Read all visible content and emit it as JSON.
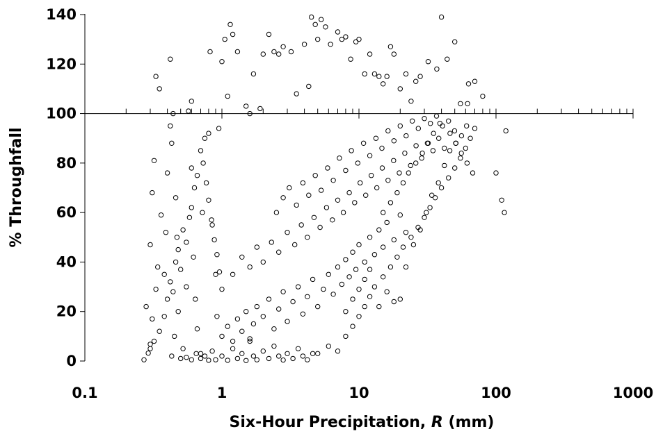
{
  "chart_data": {
    "type": "scatter",
    "title": "",
    "xlabel_prefix": "Six-Hour Precipitation,",
    "xlabel_var": "R",
    "xlabel_unit": "(mm)",
    "ylabel": "% Throughfall",
    "x_scale": "log",
    "xlim": [
      0.1,
      1000
    ],
    "ylim": [
      0,
      140
    ],
    "x_ticks": [
      0.1,
      1,
      10,
      100,
      1000
    ],
    "x_tick_labels": [
      "0.1",
      "1",
      "10",
      "100",
      "1000"
    ],
    "y_ticks": [
      0,
      20,
      40,
      60,
      80,
      100,
      120,
      140
    ],
    "y_tick_labels": [
      "0",
      "20",
      "40",
      "60",
      "80",
      "100",
      "120",
      "140"
    ],
    "reference_line_y": 100,
    "grid": false,
    "legend": "none",
    "marker": "open-circle",
    "series": [
      {
        "points": [
          [
            0.27,
            0.5
          ],
          [
            0.29,
            3.2
          ],
          [
            0.3,
            6.8
          ],
          [
            0.28,
            22
          ],
          [
            0.3,
            47
          ],
          [
            0.31,
            68
          ],
          [
            0.32,
            81
          ],
          [
            0.33,
            115
          ],
          [
            0.35,
            110
          ],
          [
            0.31,
            17
          ],
          [
            0.33,
            29
          ],
          [
            0.34,
            38
          ],
          [
            0.36,
            59
          ],
          [
            0.38,
            35
          ],
          [
            0.39,
            52
          ],
          [
            0.4,
            76
          ],
          [
            0.42,
            95
          ],
          [
            0.42,
            122
          ],
          [
            0.43,
            88
          ],
          [
            0.44,
            100
          ],
          [
            0.46,
            66
          ],
          [
            0.47,
            50
          ],
          [
            0.48,
            20
          ],
          [
            0.45,
            10
          ],
          [
            0.43,
            2
          ],
          [
            0.5,
            1
          ],
          [
            0.52,
            5
          ],
          [
            0.55,
            30
          ],
          [
            0.57,
            101
          ],
          [
            0.6,
            105
          ],
          [
            0.6,
            78
          ],
          [
            0.62,
            42
          ],
          [
            0.64,
            25
          ],
          [
            0.66,
            13
          ],
          [
            0.7,
            3
          ],
          [
            0.72,
            60
          ],
          [
            0.75,
            90
          ],
          [
            0.8,
            92
          ],
          [
            0.82,
            125
          ],
          [
            0.85,
            55
          ],
          [
            0.9,
            35
          ],
          [
            0.92,
            18
          ],
          [
            0.95,
            94
          ],
          [
            1.0,
            121
          ],
          [
            1.05,
            130
          ],
          [
            1.1,
            107
          ],
          [
            1.15,
            136
          ],
          [
            1.2,
            132
          ],
          [
            1.3,
            125
          ],
          [
            1.5,
            103
          ],
          [
            1.6,
            100
          ],
          [
            1.7,
            116
          ],
          [
            1.9,
            102
          ],
          [
            2.0,
            124
          ],
          [
            2.2,
            132
          ],
          [
            2.4,
            125
          ],
          [
            2.6,
            124
          ],
          [
            2.8,
            127
          ],
          [
            3.2,
            125
          ],
          [
            3.5,
            108
          ],
          [
            4.0,
            128
          ],
          [
            4.3,
            111
          ],
          [
            4.5,
            139
          ],
          [
            4.8,
            136
          ],
          [
            5.0,
            130
          ],
          [
            5.3,
            138
          ],
          [
            5.7,
            135
          ],
          [
            6.2,
            128
          ],
          [
            7.0,
            133
          ],
          [
            7.5,
            130
          ],
          [
            8.0,
            131
          ],
          [
            8.7,
            122
          ],
          [
            9.5,
            129
          ],
          [
            10,
            130
          ],
          [
            11,
            116
          ],
          [
            12,
            124
          ],
          [
            13,
            116
          ],
          [
            14,
            115
          ],
          [
            15,
            112
          ],
          [
            16,
            115
          ],
          [
            17,
            127
          ],
          [
            18,
            124
          ],
          [
            20,
            110
          ],
          [
            22,
            116
          ],
          [
            24,
            105
          ],
          [
            26,
            113
          ],
          [
            28,
            115
          ],
          [
            32,
            121
          ],
          [
            37,
            118
          ],
          [
            40,
            139
          ],
          [
            44,
            122
          ],
          [
            50,
            129
          ],
          [
            55,
            104
          ],
          [
            62,
            104
          ],
          [
            63,
            112
          ],
          [
            70,
            113
          ],
          [
            80,
            107
          ],
          [
            100,
            76
          ],
          [
            110,
            65
          ],
          [
            115,
            60
          ],
          [
            118,
            93
          ],
          [
            0.9,
            0.5
          ],
          [
            1.0,
            2
          ],
          [
            1.1,
            0.3
          ],
          [
            1.2,
            5
          ],
          [
            1.3,
            1
          ],
          [
            1.4,
            3
          ],
          [
            1.5,
            0.2
          ],
          [
            1.6,
            8
          ],
          [
            1.7,
            2
          ],
          [
            1.8,
            0.5
          ],
          [
            2.0,
            4
          ],
          [
            2.2,
            1
          ],
          [
            2.4,
            6
          ],
          [
            2.6,
            2
          ],
          [
            2.8,
            0.4
          ],
          [
            3.0,
            3
          ],
          [
            3.3,
            1
          ],
          [
            3.6,
            5
          ],
          [
            3.9,
            2
          ],
          [
            4.2,
            0.5
          ],
          [
            4.6,
            3
          ],
          [
            0.7,
            1
          ],
          [
            0.75,
            2
          ],
          [
            0.8,
            0.3
          ],
          [
            0.85,
            4
          ],
          [
            0.6,
            0.5
          ],
          [
            0.65,
            3
          ],
          [
            0.55,
            1.5
          ],
          [
            1.0,
            10
          ],
          [
            1.1,
            14
          ],
          [
            1.2,
            8
          ],
          [
            1.3,
            17
          ],
          [
            1.4,
            12
          ],
          [
            1.5,
            20
          ],
          [
            1.6,
            9
          ],
          [
            1.7,
            15
          ],
          [
            1.8,
            22
          ],
          [
            2.0,
            18
          ],
          [
            2.2,
            25
          ],
          [
            2.4,
            13
          ],
          [
            2.6,
            21
          ],
          [
            2.8,
            28
          ],
          [
            3.0,
            16
          ],
          [
            3.3,
            24
          ],
          [
            3.6,
            30
          ],
          [
            3.9,
            19
          ],
          [
            4.2,
            26
          ],
          [
            4.6,
            33
          ],
          [
            5.0,
            22
          ],
          [
            5.5,
            29
          ],
          [
            6.0,
            35
          ],
          [
            6.5,
            27
          ],
          [
            7.0,
            38
          ],
          [
            7.5,
            31
          ],
          [
            8.0,
            41
          ],
          [
            8.5,
            34
          ],
          [
            9.0,
            44
          ],
          [
            9.5,
            37
          ],
          [
            10,
            47
          ],
          [
            11,
            40
          ],
          [
            12,
            50
          ],
          [
            13,
            43
          ],
          [
            14,
            53
          ],
          [
            15,
            46
          ],
          [
            16,
            56
          ],
          [
            18,
            49
          ],
          [
            20,
            59
          ],
          [
            22,
            52
          ],
          [
            1.2,
            35
          ],
          [
            1.4,
            42
          ],
          [
            1.6,
            38
          ],
          [
            1.8,
            46
          ],
          [
            2.0,
            40
          ],
          [
            2.3,
            48
          ],
          [
            2.6,
            44
          ],
          [
            3.0,
            52
          ],
          [
            3.4,
            47
          ],
          [
            3.8,
            55
          ],
          [
            4.2,
            50
          ],
          [
            4.7,
            58
          ],
          [
            5.2,
            54
          ],
          [
            5.8,
            62
          ],
          [
            6.4,
            57
          ],
          [
            7.0,
            65
          ],
          [
            7.7,
            60
          ],
          [
            8.5,
            68
          ],
          [
            9.3,
            64
          ],
          [
            10.2,
            72
          ],
          [
            11.2,
            67
          ],
          [
            12.3,
            75
          ],
          [
            13.5,
            70
          ],
          [
            14.8,
            78
          ],
          [
            16.3,
            73
          ],
          [
            17.9,
            81
          ],
          [
            19.7,
            76
          ],
          [
            21.6,
            84
          ],
          [
            23.8,
            79
          ],
          [
            26.1,
            87
          ],
          [
            28.7,
            82
          ],
          [
            31.6,
            88
          ],
          [
            34.7,
            85
          ],
          [
            38.2,
            90
          ],
          [
            42.0,
            86
          ],
          [
            46.2,
            92
          ],
          [
            50.8,
            88
          ],
          [
            55.9,
            84
          ],
          [
            61.5,
            80
          ],
          [
            67.6,
            76
          ],
          [
            2.5,
            60
          ],
          [
            2.8,
            66
          ],
          [
            3.1,
            70
          ],
          [
            3.5,
            63
          ],
          [
            3.9,
            72
          ],
          [
            4.3,
            67
          ],
          [
            4.8,
            75
          ],
          [
            5.3,
            69
          ],
          [
            5.9,
            78
          ],
          [
            6.5,
            73
          ],
          [
            7.2,
            82
          ],
          [
            8.0,
            77
          ],
          [
            8.8,
            85
          ],
          [
            9.8,
            80
          ],
          [
            10.8,
            88
          ],
          [
            12.0,
            83
          ],
          [
            13.3,
            90
          ],
          [
            14.7,
            86
          ],
          [
            16.3,
            93
          ],
          [
            18.0,
            89
          ],
          [
            20.0,
            95
          ],
          [
            22.1,
            91
          ],
          [
            24.5,
            97
          ],
          [
            27.1,
            94
          ],
          [
            30.0,
            98
          ],
          [
            33.2,
            96
          ],
          [
            36.8,
            99
          ],
          [
            40.7,
            95
          ],
          [
            45.0,
            97
          ],
          [
            49.8,
            93
          ],
          [
            0.3,
            5
          ],
          [
            0.32,
            8
          ],
          [
            0.35,
            12
          ],
          [
            0.38,
            18
          ],
          [
            0.4,
            25
          ],
          [
            0.42,
            32
          ],
          [
            0.44,
            28
          ],
          [
            0.46,
            40
          ],
          [
            0.48,
            45
          ],
          [
            0.5,
            37
          ],
          [
            0.52,
            53
          ],
          [
            0.55,
            48
          ],
          [
            0.58,
            58
          ],
          [
            0.6,
            62
          ],
          [
            0.63,
            70
          ],
          [
            0.66,
            75
          ],
          [
            0.7,
            85
          ],
          [
            0.73,
            80
          ],
          [
            0.77,
            72
          ],
          [
            0.8,
            65
          ],
          [
            0.84,
            57
          ],
          [
            0.88,
            49
          ],
          [
            0.92,
            43
          ],
          [
            0.96,
            36
          ],
          [
            1.0,
            29
          ],
          [
            5,
            3
          ],
          [
            6,
            6
          ],
          [
            7,
            4
          ],
          [
            8,
            10
          ],
          [
            9,
            14
          ],
          [
            10,
            18
          ],
          [
            11,
            22
          ],
          [
            12,
            26
          ],
          [
            13,
            30
          ],
          [
            15,
            34
          ],
          [
            17,
            38
          ],
          [
            19,
            42
          ],
          [
            21,
            46
          ],
          [
            24,
            50
          ],
          [
            27,
            54
          ],
          [
            30,
            58
          ],
          [
            33,
            62
          ],
          [
            36,
            66
          ],
          [
            40,
            70
          ],
          [
            45,
            74
          ],
          [
            50,
            78
          ],
          [
            55,
            82
          ],
          [
            60,
            86
          ],
          [
            65,
            90
          ],
          [
            70,
            94
          ],
          [
            8,
            20
          ],
          [
            9,
            25
          ],
          [
            10,
            29
          ],
          [
            11,
            33
          ],
          [
            12,
            37
          ],
          [
            14,
            22
          ],
          [
            16,
            28
          ],
          [
            18,
            24
          ],
          [
            20,
            25
          ],
          [
            22,
            38
          ],
          [
            25,
            47
          ],
          [
            28,
            53
          ],
          [
            31,
            60
          ],
          [
            34,
            67
          ],
          [
            38,
            72
          ],
          [
            42,
            79
          ],
          [
            46,
            85
          ],
          [
            51,
            88
          ],
          [
            56,
            91
          ],
          [
            61,
            95
          ],
          [
            15,
            60
          ],
          [
            17,
            64
          ],
          [
            19,
            68
          ],
          [
            21,
            72
          ],
          [
            23,
            76
          ],
          [
            26,
            80
          ],
          [
            29,
            84
          ],
          [
            32,
            88
          ],
          [
            35,
            92
          ],
          [
            39,
            96
          ]
        ]
      }
    ]
  }
}
